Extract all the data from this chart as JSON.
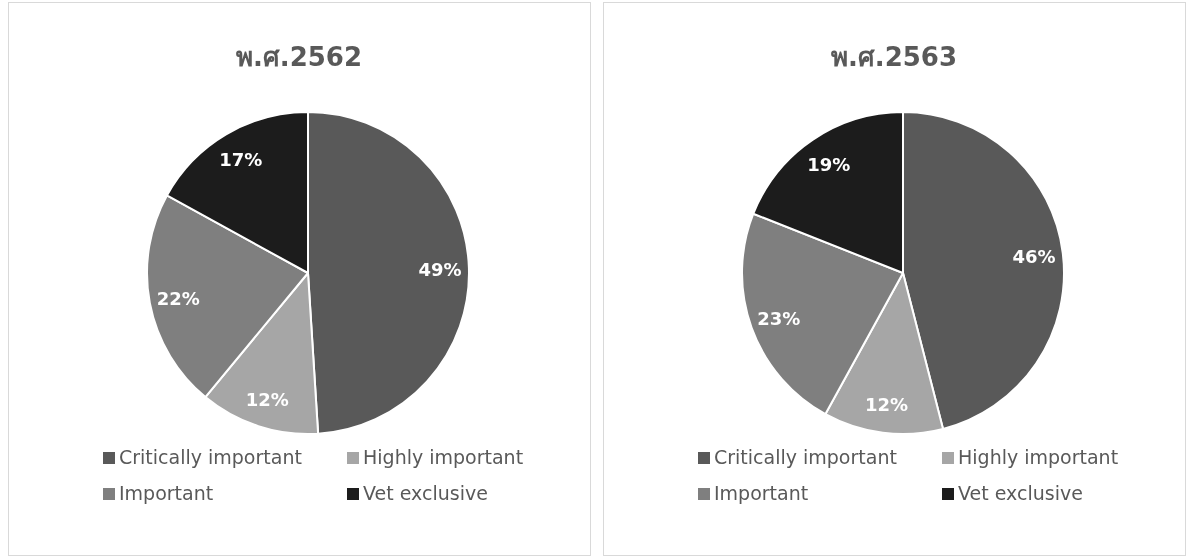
{
  "chart_data": [
    {
      "type": "pie",
      "title": "พ.ศ.2562",
      "categories": [
        "Critically important",
        "Highly important",
        "Important",
        "Vet exclusive"
      ],
      "values": [
        49,
        12,
        22,
        17
      ],
      "value_labels": [
        "49%",
        "12%",
        "22%",
        "17%"
      ],
      "colors": [
        "#595959",
        "#a6a6a6",
        "#7f7f7f",
        "#1c1c1c"
      ],
      "legend": "bottom"
    },
    {
      "type": "pie",
      "title": "พ.ศ.2563",
      "categories": [
        "Critically important",
        "Highly important",
        "Important",
        "Vet exclusive"
      ],
      "values": [
        46,
        12,
        23,
        19
      ],
      "value_labels": [
        "46%",
        "12%",
        "23%",
        "19%"
      ],
      "colors": [
        "#595959",
        "#a6a6a6",
        "#7f7f7f",
        "#1c1c1c"
      ],
      "legend": "bottom"
    }
  ]
}
